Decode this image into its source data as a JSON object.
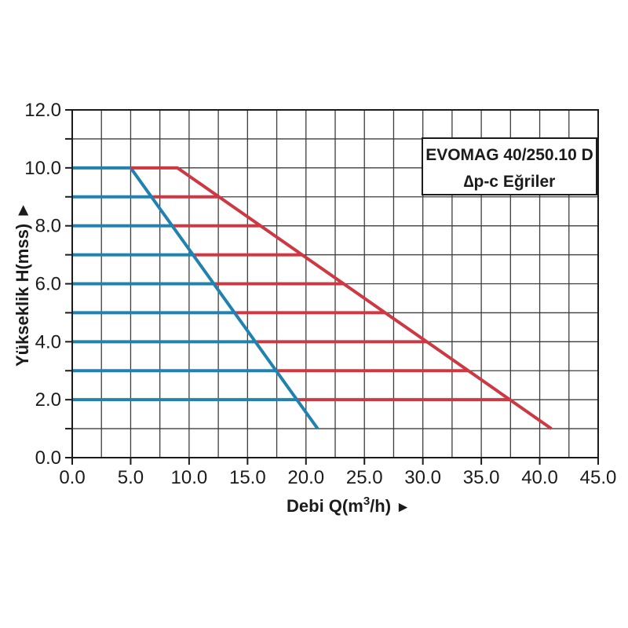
{
  "page": {
    "background": "#ffffff"
  },
  "chart_data": {
    "type": "line",
    "title": "EVOMAG 40/250.10 D",
    "subtitle": "∆p-c Eğriler",
    "xlabel": "Debi Q(m³/h) ►",
    "xlabel_parts": {
      "pre": "Debi Q(m",
      "sup": "3",
      "post": "/h) ",
      "arrow": "►"
    },
    "ylabel": "Yükseklik H(mss) ►",
    "xlim": [
      0,
      45
    ],
    "ylim": [
      0,
      12
    ],
    "x_grid_step": 2.5,
    "y_grid_step": 1,
    "x_tick_step": 5,
    "y_tick_minor_step": 1,
    "y_label_step": 2,
    "x_tick_labels": [
      "0.0",
      "5.0",
      "10.0",
      "15.0",
      "20.0",
      "25.0",
      "30.0",
      "35.0",
      "40.0",
      "45.0"
    ],
    "x_tick_values": [
      0,
      5,
      10,
      15,
      20,
      25,
      30,
      35,
      40,
      45
    ],
    "y_tick_labels": [
      "0.0",
      "2.0",
      "4.0",
      "6.0",
      "8.0",
      "10.0",
      "12.0"
    ],
    "y_label_values": [
      0,
      2,
      4,
      6,
      8,
      10,
      12
    ],
    "y_minor_tick_values": [
      0,
      1,
      2,
      3,
      4,
      5,
      6,
      7,
      8,
      9,
      10,
      11,
      12
    ],
    "grid": true,
    "legend_position": "top-right-inside",
    "series": [
      {
        "name": "blue-max-curve",
        "color": "#1f82b0",
        "path": [
          [
            0,
            10
          ],
          [
            5,
            10
          ],
          [
            21,
            1
          ]
        ]
      },
      {
        "name": "red-max-curve",
        "color": "#ce3842",
        "path": [
          [
            5,
            10
          ],
          [
            9,
            10
          ],
          [
            41,
            1
          ]
        ]
      }
    ],
    "rungs": {
      "comment_blue": "blue horizontal lines run from Q=0 to the blue envelope",
      "comment_red": "red horizontal lines run from the blue envelope to the red envelope",
      "heights": [
        2,
        3,
        4,
        5,
        6,
        7,
        8,
        9
      ],
      "blue_end": [
        19.22,
        17.44,
        15.67,
        13.89,
        12.11,
        10.33,
        8.56,
        6.78
      ],
      "red_end": [
        37.44,
        33.89,
        30.33,
        26.78,
        23.22,
        19.67,
        16.11,
        12.56
      ]
    },
    "colors": {
      "blue": "#1f82b0",
      "red": "#ce3842",
      "grid": "#3d3d3d",
      "border": "#1b1b1b",
      "text": "#1b1b1b",
      "legend_bg": "#ffffff"
    }
  }
}
